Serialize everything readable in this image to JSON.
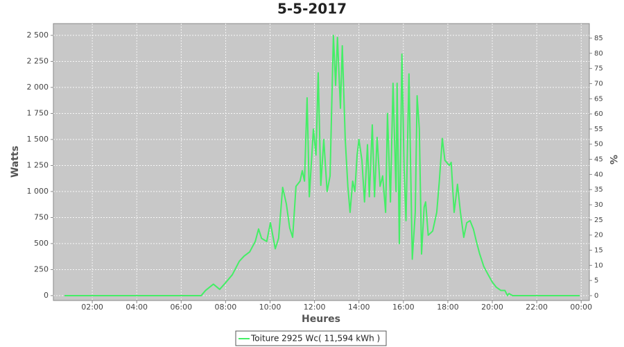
{
  "chart_data": {
    "type": "line",
    "title": "5-5-2017",
    "x_label": "Heures",
    "y_label": "Watts",
    "y2_label": "%",
    "xlim": [
      15,
      1462
    ],
    "xticks": [
      {
        "value": 120,
        "label": "02:00"
      },
      {
        "value": 240,
        "label": "04:00"
      },
      {
        "value": 360,
        "label": "06:00"
      },
      {
        "value": 480,
        "label": "08:00"
      },
      {
        "value": 600,
        "label": "10:00"
      },
      {
        "value": 720,
        "label": "12:00"
      },
      {
        "value": 840,
        "label": "14:00"
      },
      {
        "value": 960,
        "label": "16:00"
      },
      {
        "value": 1080,
        "label": "18:00"
      },
      {
        "value": 1200,
        "label": "20:00"
      },
      {
        "value": 1320,
        "label": "22:00"
      },
      {
        "value": 1440,
        "label": "00:00"
      }
    ],
    "ylim": [
      -47,
      2613
    ],
    "yticks": [
      0,
      250,
      500,
      750,
      {
        "value": 1000,
        "label": "1 000"
      },
      {
        "value": 1250,
        "label": "1 250"
      },
      {
        "value": 1500,
        "label": "1 500"
      },
      {
        "value": 1750,
        "label": "1 750"
      },
      {
        "value": 2000,
        "label": "2 000"
      },
      {
        "value": 2250,
        "label": "2 250"
      },
      {
        "value": 2500,
        "label": "2 500"
      }
    ],
    "y2lim": [
      -1.6,
      89.8
    ],
    "y2ticks": [
      0,
      5,
      10,
      15,
      20,
      25,
      30,
      35,
      40,
      45,
      50,
      55,
      60,
      65,
      70,
      75,
      80,
      85
    ],
    "grid": true,
    "legend": "bottom",
    "x": [
      45,
      414,
      426,
      447,
      464,
      479,
      498,
      517,
      530,
      545,
      560,
      569,
      577,
      591,
      601,
      614,
      623,
      634,
      644,
      653,
      661,
      670,
      681,
      687,
      693,
      700,
      706,
      717,
      724,
      730,
      737,
      745,
      754,
      762,
      771,
      777,
      782,
      790,
      795,
      803,
      810,
      816,
      823,
      829,
      835,
      840,
      848,
      855,
      863,
      868,
      876,
      882,
      889,
      897,
      904,
      912,
      917,
      925,
      932,
      940,
      943,
      949,
      956,
      962,
      967,
      975,
      984,
      992,
      997,
      1003,
      1009,
      1016,
      1020,
      1027,
      1039,
      1050,
      1057,
      1065,
      1072,
      1084,
      1089,
      1097,
      1106,
      1114,
      1123,
      1131,
      1140,
      1149,
      1157,
      1166,
      1177,
      1189,
      1200,
      1211,
      1223,
      1234,
      1241,
      1245,
      1255,
      1436
    ],
    "series": [
      {
        "name": "Toiture 2925 Wc( 11,594 kWh )",
        "color": "#44ee66",
        "axis": "y",
        "values": [
          0,
          0,
          50,
          110,
          60,
          120,
          200,
          330,
          380,
          420,
          520,
          640,
          550,
          520,
          700,
          450,
          550,
          1040,
          880,
          650,
          560,
          1050,
          1100,
          1200,
          1100,
          1900,
          950,
          1600,
          1350,
          2140,
          1060,
          1500,
          1000,
          1150,
          2500,
          2020,
          2480,
          1800,
          2400,
          1500,
          1050,
          800,
          1100,
          1000,
          1350,
          1500,
          1300,
          900,
          1450,
          950,
          1640,
          950,
          1520,
          1050,
          1150,
          800,
          1750,
          900,
          2040,
          1000,
          2040,
          500,
          2320,
          1200,
          720,
          2130,
          350,
          800,
          1920,
          1600,
          400,
          850,
          900,
          580,
          620,
          800,
          1100,
          1510,
          1300,
          1250,
          1280,
          800,
          1070,
          800,
          560,
          700,
          720,
          640,
          520,
          400,
          280,
          200,
          130,
          80,
          50,
          50,
          0,
          20,
          0,
          0
        ]
      }
    ]
  }
}
